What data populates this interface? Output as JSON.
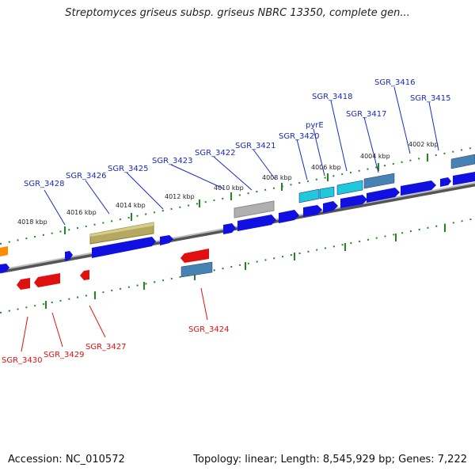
{
  "title": "Streptomyces griseus subsp. griseus NBRC 13350, complete gen...",
  "footer": {
    "accession": "Accession: NC_010572",
    "topology": "Topology: linear; Length: 8,545,929 bp; Genes: 7,222"
  },
  "ruler_labels": [
    "4018 kbp",
    "4016 kbp",
    "4014 kbp",
    "4012 kbp",
    "4010 kbp",
    "4008 kbp",
    "4006 kbp",
    "4004 kbp",
    "4002 kbp"
  ],
  "forward_genes": [
    "SGR_3428",
    "SGR_3426",
    "SGR_3425",
    "SGR_3423",
    "SGR_3422",
    "SGR_3421",
    "SGR_3420",
    "pyrE",
    "SGR_3418",
    "SGR_3417",
    "SGR_3416",
    "SGR_3415"
  ],
  "reverse_genes": [
    "SGR_3430",
    "SGR_3429",
    "SGR_3427",
    "SGR_3424"
  ],
  "colors": {
    "forward": "#1010e0",
    "reverse": "#e01010",
    "olive": "#b5a860",
    "cyan": "#20c8d8",
    "steel": "#4682b4",
    "gray": "#b0b0b0",
    "orange": "#ff8c00",
    "ruler": "#228822",
    "backbone": "#777777"
  }
}
